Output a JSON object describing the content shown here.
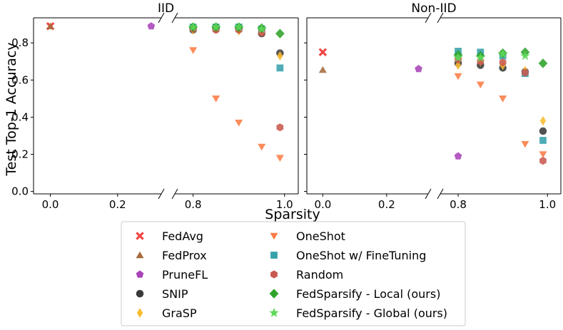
{
  "chart_data": {
    "type": "scatter",
    "xlabel": "Sparsity",
    "ylabel": "Test Top-1 Accuracy",
    "ylim": [
      0.0,
      0.9
    ],
    "yticks": [
      "0.0",
      "0.2",
      "0.4",
      "0.6",
      "0.8"
    ],
    "xticks": [
      "0.0",
      "0.2",
      "0.8",
      "1.0"
    ],
    "x_axis_break": "between 0.3 and 0.75",
    "legend_position": "below plots",
    "legend": [
      {
        "key": "fedavg",
        "label": "FedAvg",
        "marker": "x",
        "color": "#f04646"
      },
      {
        "key": "fedprox",
        "label": "FedProx",
        "marker": "triangle-up",
        "color": "#a66b3f"
      },
      {
        "key": "prunefl",
        "label": "PruneFL",
        "marker": "pentagon",
        "color": "#a844b8"
      },
      {
        "key": "snip",
        "label": "SNIP",
        "marker": "circle",
        "color": "#3a3a3a"
      },
      {
        "key": "grasp",
        "label": "GraSP",
        "marker": "diamond-thin",
        "color": "#f7bb2d"
      },
      {
        "key": "oneshot",
        "label": "OneShot",
        "marker": "triangle-down",
        "color": "#fb7c44"
      },
      {
        "key": "oneshot_ft",
        "label": "OneShot w/ FineTuning",
        "marker": "square",
        "color": "#36a1a8"
      },
      {
        "key": "random",
        "label": "Random",
        "marker": "hexagon",
        "color": "#c9594e"
      },
      {
        "key": "fedsparsify_local",
        "label": "FedSparsify - Local (ours)",
        "marker": "diamond",
        "color": "#2ea32a"
      },
      {
        "key": "fedsparsify_global",
        "label": "FedSparsify - Global (ours)",
        "marker": "star",
        "color": "#5fd85a"
      }
    ],
    "panels": [
      {
        "title": "IID",
        "series": {
          "fedavg": [
            [
              0.0,
              0.89
            ]
          ],
          "fedprox": [
            [
              0.0,
              0.89
            ]
          ],
          "prunefl": [
            [
              0.3,
              0.89
            ]
          ],
          "snip": [
            [
              0.8,
              0.87
            ],
            [
              0.85,
              0.875
            ],
            [
              0.9,
              0.875
            ],
            [
              0.95,
              0.85
            ],
            [
              0.99,
              0.745
            ]
          ],
          "grasp": [
            [
              0.8,
              0.87
            ],
            [
              0.85,
              0.875
            ],
            [
              0.9,
              0.865
            ],
            [
              0.95,
              0.86
            ],
            [
              0.99,
              0.73
            ]
          ],
          "oneshot": [
            [
              0.8,
              0.76
            ],
            [
              0.85,
              0.5
            ],
            [
              0.9,
              0.37
            ],
            [
              0.95,
              0.24
            ],
            [
              0.99,
              0.18
            ]
          ],
          "oneshot_ft": [
            [
              0.8,
              0.885
            ],
            [
              0.85,
              0.885
            ],
            [
              0.9,
              0.885
            ],
            [
              0.95,
              0.875
            ],
            [
              0.99,
              0.665
            ]
          ],
          "random": [
            [
              0.8,
              0.875
            ],
            [
              0.85,
              0.87
            ],
            [
              0.9,
              0.87
            ],
            [
              0.95,
              0.855
            ],
            [
              0.99,
              0.345
            ]
          ],
          "fedsparsify_local": [
            [
              0.8,
              0.885
            ],
            [
              0.85,
              0.885
            ],
            [
              0.9,
              0.885
            ],
            [
              0.95,
              0.88
            ],
            [
              0.99,
              0.85
            ]
          ],
          "fedsparsify_global": [
            [
              0.8,
              0.885
            ],
            [
              0.85,
              0.885
            ],
            [
              0.9,
              0.885
            ],
            [
              0.95,
              0.875
            ]
          ]
        }
      },
      {
        "title": "Non-IID",
        "series": {
          "fedavg": [
            [
              0.0,
              0.75
            ]
          ],
          "fedprox": [
            [
              0.0,
              0.655
            ]
          ],
          "prunefl": [
            [
              0.3,
              0.66
            ]
          ],
          "snip": [
            [
              0.8,
              0.69
            ],
            [
              0.85,
              0.68
            ],
            [
              0.9,
              0.665
            ],
            [
              0.95,
              0.645
            ],
            [
              0.99,
              0.325
            ]
          ],
          "grasp": [
            [
              0.8,
              0.68
            ],
            [
              0.85,
              0.7
            ],
            [
              0.9,
              0.68
            ],
            [
              0.95,
              0.65
            ],
            [
              0.99,
              0.38
            ]
          ],
          "oneshot": [
            [
              0.8,
              0.62
            ],
            [
              0.85,
              0.575
            ],
            [
              0.9,
              0.5
            ],
            [
              0.95,
              0.255
            ],
            [
              0.99,
              0.2
            ]
          ],
          "oneshot_ft": [
            [
              0.8,
              0.755
            ],
            [
              0.85,
              0.75
            ],
            [
              0.9,
              0.73
            ],
            [
              0.95,
              0.635
            ],
            [
              0.99,
              0.275
            ]
          ],
          "random": [
            [
              0.8,
              0.71
            ],
            [
              0.85,
              0.7
            ],
            [
              0.9,
              0.695
            ],
            [
              0.95,
              0.64
            ],
            [
              0.99,
              0.165
            ]
          ],
          "fedsparsify_local": [
            [
              0.8,
              0.735
            ],
            [
              0.85,
              0.73
            ],
            [
              0.9,
              0.745
            ],
            [
              0.95,
              0.75
            ],
            [
              0.99,
              0.69
            ]
          ],
          "fedsparsify_global": [
            [
              0.8,
              0.72
            ],
            [
              0.85,
              0.72
            ],
            [
              0.9,
              0.74
            ],
            [
              0.95,
              0.73
            ]
          ]
        },
        "extra_markers": {
          "prunefl": [
            [
              0.8,
              0.19
            ]
          ]
        }
      }
    ]
  }
}
